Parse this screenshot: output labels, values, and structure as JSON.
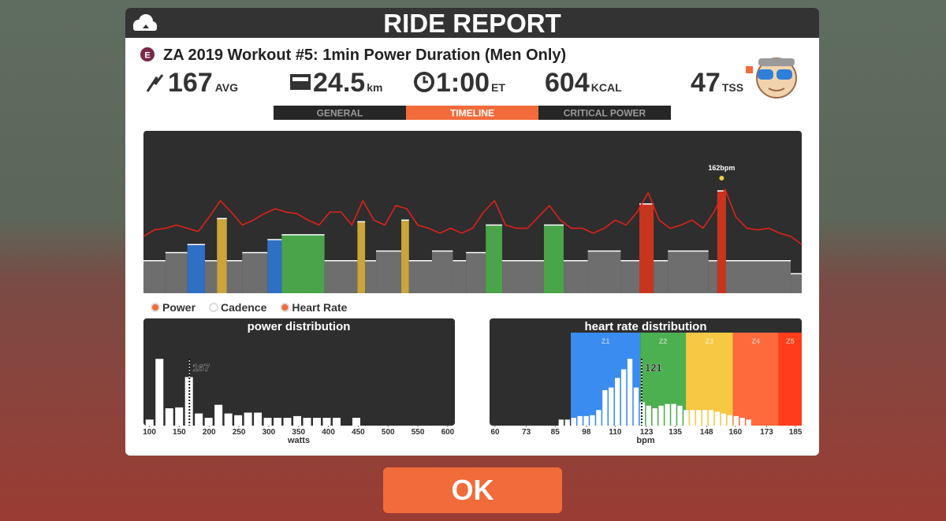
{
  "header": {
    "title": "RIDE REPORT"
  },
  "workout": {
    "badge": "E",
    "name": "ZA 2019 Workout #5: 1min Power Duration (Men Only)"
  },
  "stats": {
    "power": {
      "value": 167,
      "unit": "AVG"
    },
    "distance": {
      "value": 24.5,
      "unit": "km"
    },
    "time": {
      "value": "1:00",
      "unit": "ET"
    },
    "calories": {
      "value": 604,
      "unit": "KCAL"
    },
    "tss": {
      "value": 47,
      "unit": "TSS"
    }
  },
  "tabs": [
    {
      "label": "GENERAL",
      "active": false
    },
    {
      "label": "TIMELINE",
      "active": true
    },
    {
      "label": "CRITICAL POWER",
      "active": false
    }
  ],
  "timeline": {
    "xlim": [
      0,
      60
    ],
    "ylim": [
      0,
      100
    ],
    "annotation": {
      "text": "162bpm",
      "x": 52.7
    },
    "legend": [
      {
        "name": "Power",
        "color": "#f26b3a"
      },
      {
        "name": "Cadence",
        "color": "#ffffff"
      },
      {
        "name": "Heart Rate",
        "color": "#f26b3a"
      }
    ],
    "power": {
      "segments": [
        {
          "start": 0,
          "end": 2,
          "value": 20,
          "color": "#6e6e6e"
        },
        {
          "start": 2,
          "end": 4,
          "value": 25,
          "color": "#6e6e6e"
        },
        {
          "start": 4,
          "end": 5.6,
          "value": 30,
          "color": "#2f6fc4"
        },
        {
          "start": 5.6,
          "end": 6.7,
          "value": 20,
          "color": "#6e6e6e"
        },
        {
          "start": 6.7,
          "end": 7.6,
          "value": 46,
          "color": "#c9a53a"
        },
        {
          "start": 7.6,
          "end": 9,
          "value": 20,
          "color": "#6e6e6e"
        },
        {
          "start": 9,
          "end": 11.3,
          "value": 25,
          "color": "#6e6e6e"
        },
        {
          "start": 11.3,
          "end": 12.6,
          "value": 33,
          "color": "#2f6fc4"
        },
        {
          "start": 12.6,
          "end": 16.5,
          "value": 36,
          "color": "#4aa44a"
        },
        {
          "start": 16.5,
          "end": 19.5,
          "value": 20,
          "color": "#6e6e6e"
        },
        {
          "start": 19.5,
          "end": 20.2,
          "value": 44,
          "color": "#c9a53a"
        },
        {
          "start": 20.2,
          "end": 21.2,
          "value": 20,
          "color": "#6e6e6e"
        },
        {
          "start": 21.2,
          "end": 23.5,
          "value": 26,
          "color": "#6e6e6e"
        },
        {
          "start": 23.5,
          "end": 24.2,
          "value": 45,
          "color": "#c9a53a"
        },
        {
          "start": 24.2,
          "end": 26.3,
          "value": 20,
          "color": "#6e6e6e"
        },
        {
          "start": 26.3,
          "end": 28.2,
          "value": 26,
          "color": "#6e6e6e"
        },
        {
          "start": 28.2,
          "end": 29.4,
          "value": 20,
          "color": "#6e6e6e"
        },
        {
          "start": 29.4,
          "end": 31.2,
          "value": 25,
          "color": "#6e6e6e"
        },
        {
          "start": 31.2,
          "end": 32.7,
          "value": 42,
          "color": "#4aa44a"
        },
        {
          "start": 32.7,
          "end": 36.5,
          "value": 20,
          "color": "#6e6e6e"
        },
        {
          "start": 36.5,
          "end": 38.3,
          "value": 42,
          "color": "#4aa44a"
        },
        {
          "start": 38.3,
          "end": 40.5,
          "value": 20,
          "color": "#6e6e6e"
        },
        {
          "start": 40.5,
          "end": 43.5,
          "value": 26,
          "color": "#6e6e6e"
        },
        {
          "start": 43.5,
          "end": 45.2,
          "value": 20,
          "color": "#6e6e6e"
        },
        {
          "start": 45.2,
          "end": 46.5,
          "value": 55,
          "color": "#c8351e"
        },
        {
          "start": 46.5,
          "end": 47.8,
          "value": 20,
          "color": "#6e6e6e"
        },
        {
          "start": 47.8,
          "end": 51.5,
          "value": 26,
          "color": "#6e6e6e"
        },
        {
          "start": 51.5,
          "end": 52.3,
          "value": 20,
          "color": "#6e6e6e"
        },
        {
          "start": 52.3,
          "end": 53.1,
          "value": 63,
          "color": "#c8351e"
        },
        {
          "start": 53.1,
          "end": 59,
          "value": 20,
          "color": "#6e6e6e"
        },
        {
          "start": 59,
          "end": 60,
          "value": 12,
          "color": "#6e6e6e"
        }
      ]
    },
    "heart_rate": {
      "color": "#e0201b",
      "x": [
        0,
        1,
        2,
        3,
        4,
        5,
        6,
        7,
        8,
        9,
        10,
        11,
        12,
        13,
        14,
        15,
        16,
        17,
        18,
        19,
        20,
        21,
        22,
        23,
        24,
        25,
        26,
        27,
        28,
        29,
        30,
        31,
        32,
        33,
        34,
        35,
        36,
        37,
        38,
        39,
        40,
        41,
        42,
        43,
        44,
        45,
        46,
        47,
        48,
        49,
        50,
        51,
        52,
        53,
        54,
        55,
        56,
        57,
        58,
        59,
        60
      ],
      "values": [
        35,
        39,
        40,
        42,
        40,
        38,
        47,
        57,
        50,
        42,
        45,
        49,
        52,
        50,
        49,
        45,
        42,
        50,
        50,
        42,
        57,
        45,
        42,
        54,
        52,
        42,
        40,
        37,
        40,
        37,
        40,
        50,
        57,
        42,
        40,
        40,
        47,
        54,
        45,
        40,
        40,
        37,
        40,
        45,
        42,
        50,
        62,
        45,
        40,
        42,
        45,
        40,
        50,
        64,
        47,
        40,
        39,
        40,
        37,
        35,
        30
      ]
    }
  },
  "power_distribution": {
    "title": "power distribution",
    "axis_label": "watts",
    "xlim": [
      90,
      612
    ],
    "ylim": [
      0,
      100
    ],
    "xticks": [
      100,
      150,
      200,
      250,
      300,
      350,
      400,
      450,
      500,
      550,
      600
    ],
    "bins": [
      92,
      108.5,
      125,
      141.5,
      158,
      174.5,
      191,
      207.5,
      224,
      240.5,
      257,
      273.5,
      290,
      306.5,
      323,
      339.5,
      356,
      372.5,
      389,
      405.5,
      422,
      438.5,
      455
    ],
    "counts": [
      7,
      77,
      20,
      21,
      56,
      14,
      9,
      24,
      14,
      12,
      15,
      15,
      9,
      9,
      9,
      11,
      9,
      9,
      9,
      9,
      0,
      9
    ],
    "marker": 167
  },
  "hr_distribution": {
    "title": "heart rate distribution",
    "axis_label": "bpm",
    "xlim": [
      57.7,
      187.6
    ],
    "ylim": [
      0,
      100
    ],
    "xticks": [
      60,
      73,
      85,
      98,
      110,
      123,
      135,
      148,
      160,
      173,
      185
    ],
    "zones": [
      {
        "label": "Z1",
        "start": 91.5,
        "end": 120.4,
        "color": "#3a8cf0"
      },
      {
        "label": "Z2",
        "start": 120.4,
        "end": 139.4,
        "color": "#4caf50"
      },
      {
        "label": "Z3",
        "start": 139.4,
        "end": 159,
        "color": "#f7c843"
      },
      {
        "label": "Z4",
        "start": 159,
        "end": 178,
        "color": "#ff6a3d"
      },
      {
        "label": "Z5",
        "start": 178,
        "end": 187.6,
        "color": "#ff3d1a"
      }
    ],
    "bins": [
      86.2,
      88.8,
      91.4,
      94.0,
      96.6,
      99.2,
      101.8,
      104.4,
      107.0,
      109.6,
      112.2,
      114.8,
      117.4,
      120.0,
      122.6,
      125.2,
      127.8,
      130.4,
      133.0,
      135.6,
      138.2,
      140.8,
      143.4,
      146.0,
      148.6,
      151.2,
      153.8,
      156.4,
      159.0,
      161.6,
      164.2,
      166.8
    ],
    "counts": [
      7,
      7,
      9,
      11,
      11,
      12,
      18,
      41,
      44,
      55,
      65,
      77,
      44,
      27,
      23,
      20,
      23,
      25,
      25,
      23,
      18,
      18,
      18,
      18,
      18,
      16,
      14,
      12,
      11,
      9,
      7
    ],
    "marker": 121
  },
  "button": {
    "label": "OK"
  }
}
